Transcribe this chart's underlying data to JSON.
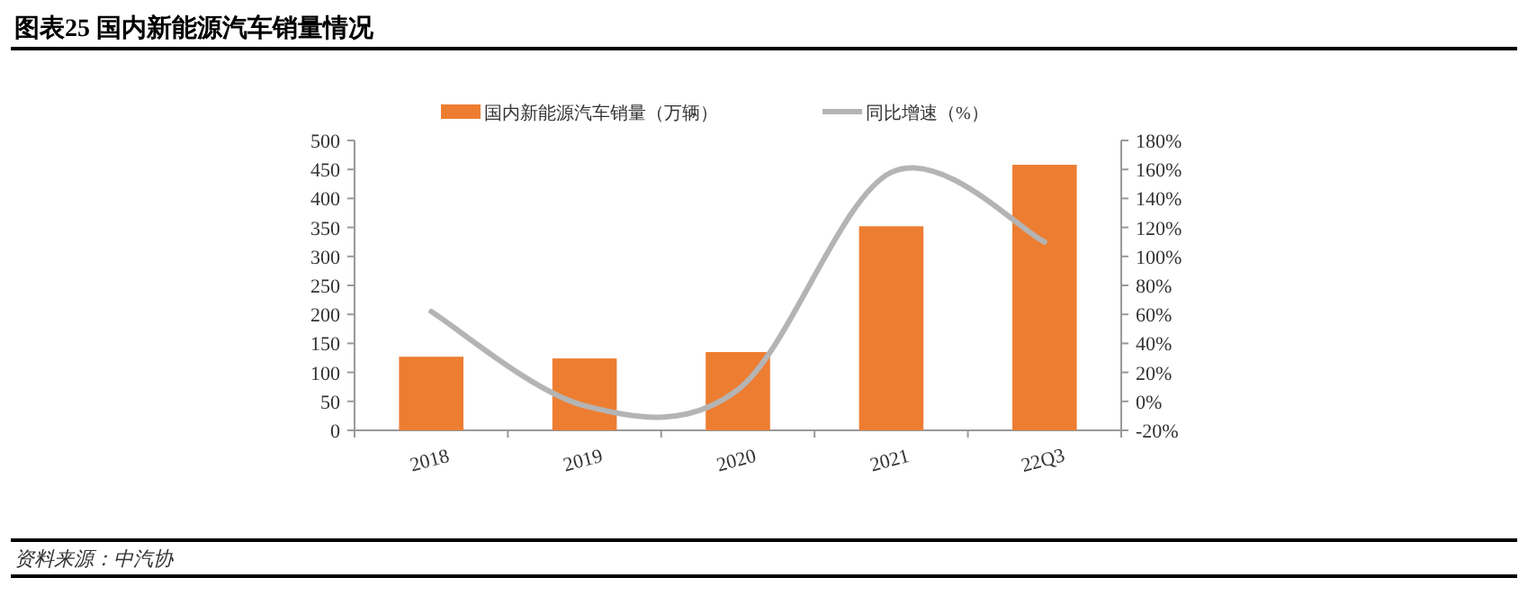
{
  "chart_data": {
    "type": "bar",
    "title": "图表25   国内新能源汽车销量情况",
    "categories": [
      "2018",
      "2019",
      "2020",
      "2021",
      "22Q3"
    ],
    "series": [
      {
        "name": "国内新能源汽车销量（万辆）",
        "color": "#ed7d31",
        "values": [
          127,
          124,
          135,
          352,
          458
        ]
      },
      {
        "name": "同比增速（%）",
        "type": "line",
        "axis": "y2",
        "color": "#b4b4b4",
        "values": [
          62,
          -3,
          8,
          158,
          110
        ]
      }
    ],
    "ylim": [
      0,
      500
    ],
    "yticks": [
      0,
      50,
      100,
      150,
      200,
      250,
      300,
      350,
      400,
      450,
      500
    ],
    "y2lim": [
      -20,
      180
    ],
    "y2ticks": [
      {
        "value": -20,
        "label": "-20%"
      },
      {
        "value": 0,
        "label": "0%"
      },
      {
        "value": 20,
        "label": "20%"
      },
      {
        "value": 40,
        "label": "40%"
      },
      {
        "value": 60,
        "label": "60%"
      },
      {
        "value": 80,
        "label": "80%"
      },
      {
        "value": 100,
        "label": "100%"
      },
      {
        "value": 120,
        "label": "120%"
      },
      {
        "value": 140,
        "label": "140%"
      },
      {
        "value": 160,
        "label": "160%"
      },
      {
        "value": 180,
        "label": "180%"
      }
    ],
    "legend": "top",
    "grid": false,
    "annotations": [
      "资料来源：中汽协"
    ]
  }
}
